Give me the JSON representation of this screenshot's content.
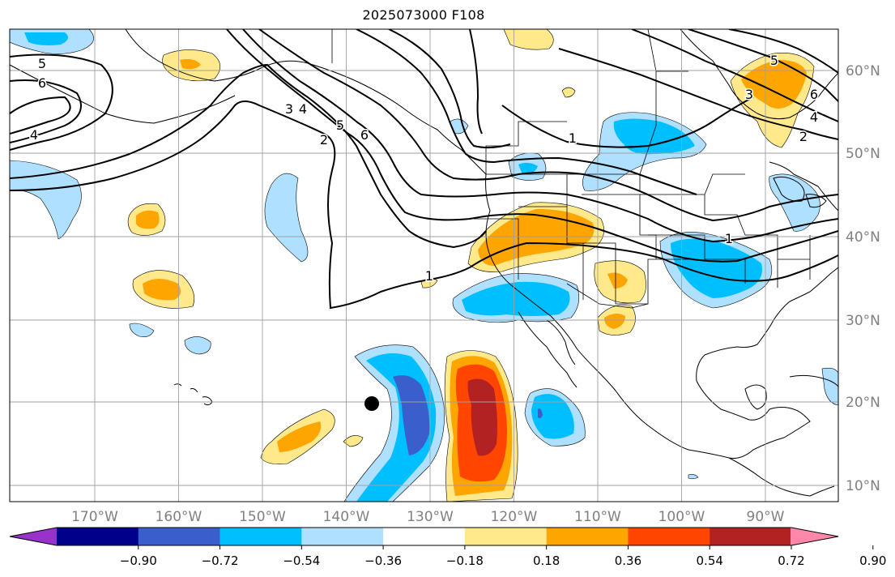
{
  "title": "2025073000 F108",
  "map": {
    "lon_range": [
      -180,
      -80
    ],
    "lat_range": [
      8,
      65
    ],
    "lon_ticks": [
      "170°W",
      "160°W",
      "150°W",
      "140°W",
      "130°W",
      "120°W",
      "110°W",
      "100°W",
      "90°W"
    ],
    "lat_ticks": [
      "10°N",
      "20°N",
      "30°N",
      "40°N",
      "50°N",
      "60°N"
    ],
    "gridlines": true,
    "tick_label_color": "#808080",
    "marker": {
      "lon": -136,
      "lat": 20,
      "color": "#000000"
    },
    "contour_labels": [
      "5",
      "6",
      "4",
      "3",
      "4",
      "5",
      "6",
      "2",
      "1",
      "1",
      "1",
      "5",
      "3",
      "6",
      "4",
      "2"
    ]
  },
  "colorbar": {
    "ticks": [
      "−0.90",
      "−0.72",
      "−0.54",
      "−0.36",
      "−0.18",
      "0.18",
      "0.36",
      "0.54",
      "0.72",
      "0.90"
    ],
    "colors": [
      "#9932CC",
      "#00008B",
      "#3A5FCD",
      "#00BFFF",
      "#B0E0FF",
      "#FFFFFF",
      "#FFE98A",
      "#FFA500",
      "#FF4500",
      "#B22222",
      "#FF88AA"
    ]
  }
}
